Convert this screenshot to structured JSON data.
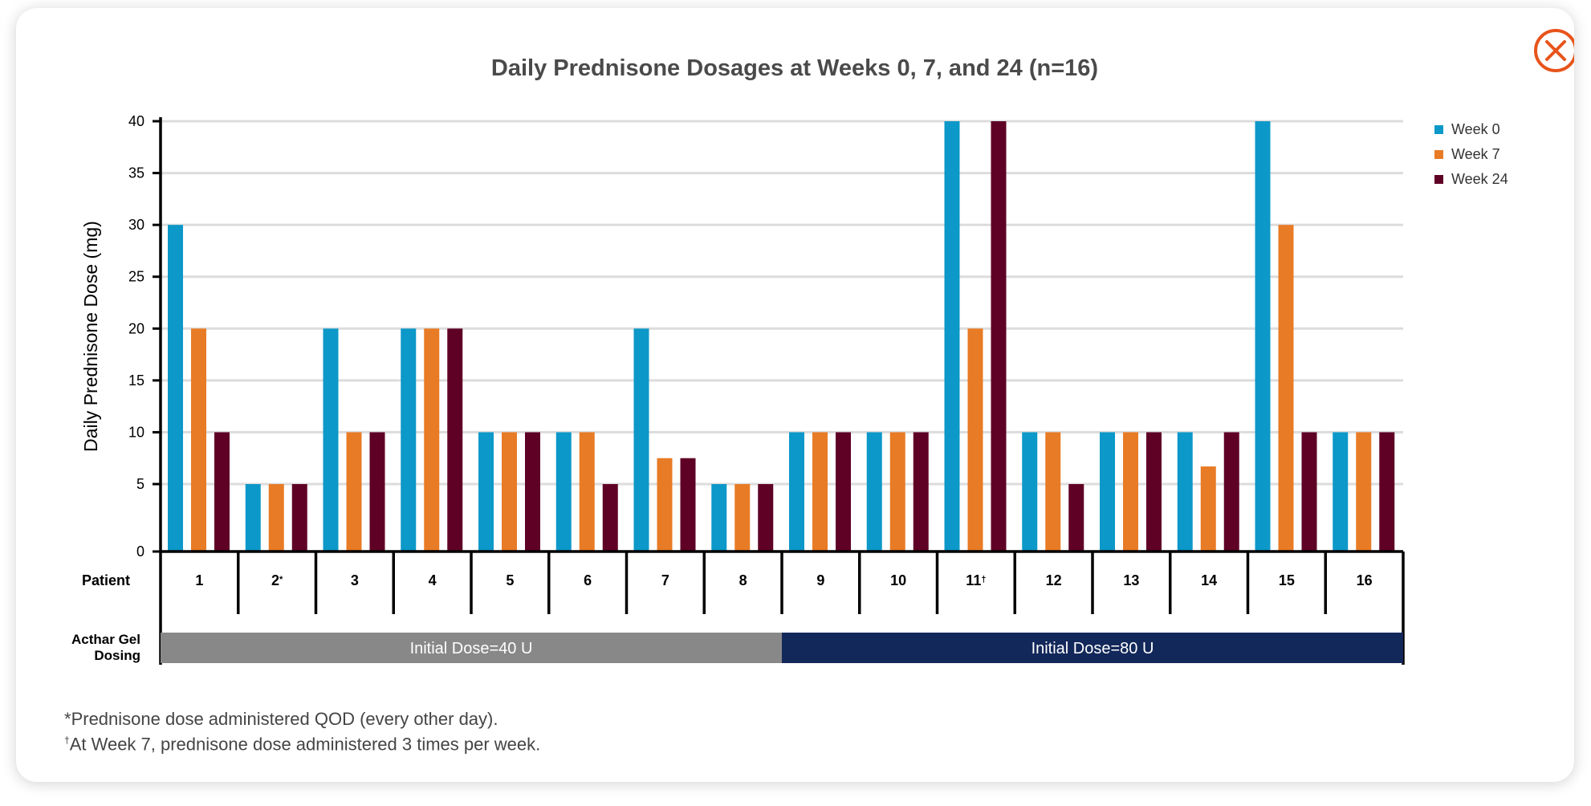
{
  "chart_data": {
    "type": "bar",
    "title": "Daily Prednisone Dosages at Weeks 0, 7, and 24 (n=16)",
    "ylabel": "Daily Prednisone Dose (mg)",
    "xlabel": "Patient",
    "ylim": [
      0,
      40
    ],
    "yticks": [
      0,
      5,
      10,
      15,
      20,
      25,
      30,
      35,
      40
    ],
    "grid": true,
    "legend_position": "top-right",
    "categories": [
      "1",
      "2",
      "3",
      "4",
      "5",
      "6",
      "7",
      "8",
      "9",
      "10",
      "11",
      "12",
      "13",
      "14",
      "15",
      "16"
    ],
    "category_marks": [
      "",
      "*",
      "",
      "",
      "",
      "",
      "",
      "",
      "",
      "",
      "†",
      "",
      "",
      "",
      "",
      ""
    ],
    "series": [
      {
        "name": "Week 0",
        "color": "#0c98c8",
        "values": [
          30,
          5,
          20,
          20,
          10,
          10,
          20,
          5,
          10,
          10,
          40,
          10,
          10,
          10,
          40,
          10
        ]
      },
      {
        "name": "Week 7",
        "color": "#e87b25",
        "values": [
          20,
          5,
          10,
          20,
          10,
          10,
          7.5,
          5,
          10,
          10,
          20,
          10,
          10,
          6.7,
          30,
          10
        ]
      },
      {
        "name": "Week 24",
        "color": "#5f0025",
        "values": [
          10,
          5,
          10,
          20,
          10,
          5,
          7.5,
          5,
          10,
          10,
          40,
          5,
          10,
          10,
          10,
          10
        ]
      }
    ],
    "dosing": {
      "row_label": "Acthar Gel Dosing",
      "bands": [
        {
          "label": "Initial Dose=40 U",
          "from_patient": 1,
          "to_patient": 8,
          "color": "#888888"
        },
        {
          "label": "Initial Dose=80 U",
          "from_patient": 9,
          "to_patient": 16,
          "color": "#13285a"
        }
      ]
    }
  },
  "footnotes": [
    {
      "mark": "*",
      "text": "Prednisone dose administered QOD (every other day)."
    },
    {
      "mark": "†",
      "text": "At Week 7, prednisone dose administered 3 times per week."
    }
  ],
  "close_button": {
    "icon": "close-icon",
    "color": "#e8541b"
  }
}
